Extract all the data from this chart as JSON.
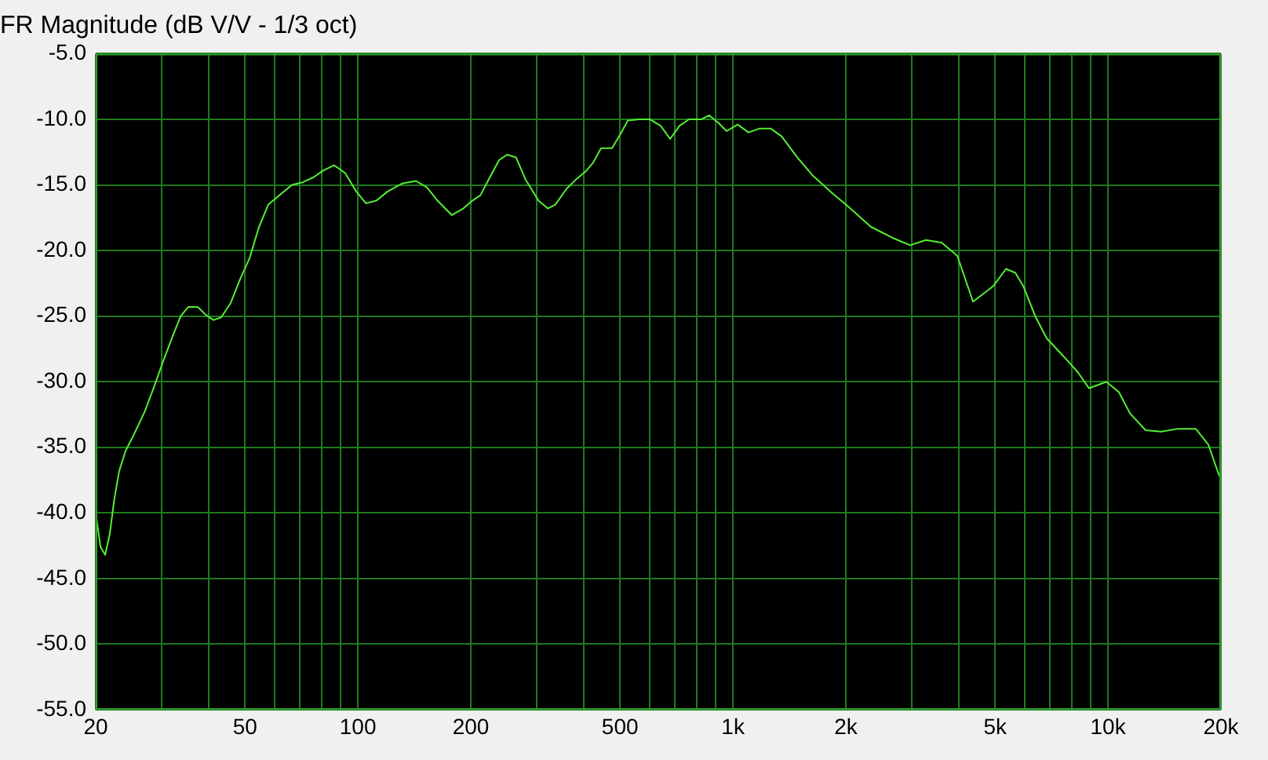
{
  "chart_data": {
    "type": "line",
    "title": "FR Magnitude (dB V/V - 1/3 oct)",
    "log": "x",
    "grid": true,
    "legend": false,
    "marker": "none",
    "line_style": "solid",
    "xlim": [
      20,
      20000
    ],
    "xticks": [
      20,
      {
        "value": 30,
        "label": null
      },
      {
        "value": 40,
        "label": null
      },
      50,
      {
        "value": 60,
        "label": null
      },
      {
        "value": 70,
        "label": null
      },
      {
        "value": 80,
        "label": null
      },
      {
        "value": 90,
        "label": null
      },
      100,
      200,
      {
        "value": 300,
        "label": null
      },
      {
        "value": 400,
        "label": null
      },
      500,
      {
        "value": 600,
        "label": null
      },
      {
        "value": 700,
        "label": null
      },
      {
        "value": 800,
        "label": null
      },
      {
        "value": 900,
        "label": null
      },
      {
        "value": 1000,
        "label": "1k"
      },
      {
        "value": 2000,
        "label": "2k"
      },
      {
        "value": 3000,
        "label": null
      },
      {
        "value": 4000,
        "label": null
      },
      {
        "value": 5000,
        "label": "5k"
      },
      {
        "value": 6000,
        "label": null
      },
      {
        "value": 7000,
        "label": null
      },
      {
        "value": 8000,
        "label": null
      },
      {
        "value": 9000,
        "label": null
      },
      {
        "value": 10000,
        "label": "10k"
      },
      {
        "value": 20000,
        "label": "20k"
      }
    ],
    "ylim": [
      -55,
      -5
    ],
    "yticks": [
      {
        "value": -55,
        "label": "-55.0"
      },
      {
        "value": -50,
        "label": "-50.0"
      },
      {
        "value": -45,
        "label": "-45.0"
      },
      {
        "value": -40,
        "label": "-40.0"
      },
      {
        "value": -35,
        "label": "-35.0"
      },
      {
        "value": -30,
        "label": "-30.0"
      },
      {
        "value": -25,
        "label": "-25.0"
      },
      {
        "value": -20,
        "label": "-20.0"
      },
      {
        "value": -15,
        "label": "-15.0"
      },
      {
        "value": -10,
        "label": "-10.0"
      },
      {
        "value": -5,
        "label": "-5.0"
      }
    ],
    "series": [
      {
        "color": "#55ee33",
        "x": [
          20,
          20.6,
          21.2,
          21.8,
          22.4,
          23.1,
          24.0,
          25.2,
          27.0,
          28.6,
          30.3,
          32.1,
          33.7,
          35.3,
          37.4,
          39.3,
          41.2,
          43.2,
          45.8,
          48.5,
          51.4,
          54.5,
          57.7,
          61.7,
          66.7,
          71.3,
          76.3,
          80.9,
          86.5,
          92.5,
          99,
          105,
          112,
          120,
          131,
          143,
          153,
          163,
          178,
          191,
          202,
          212,
          225,
          238,
          250,
          264,
          280,
          303,
          321,
          336,
          360,
          381,
          404,
          424,
          445,
          476,
          504,
          524,
          561,
          600,
          642,
          680,
          720,
          763,
          824,
          865,
          917,
          962,
          1029,
          1100,
          1178,
          1260,
          1348,
          1484,
          1634,
          1834,
          2020,
          2334,
          2696,
          2968,
          3270,
          3600,
          3964,
          4366,
          4948,
          5346,
          5662,
          5942,
          6418,
          6866,
          7632,
          8322,
          8902,
          9900,
          10692,
          11438,
          12598,
          13870,
          15270,
          17150,
          18518,
          19808
        ],
        "values": [
          -40.0,
          -42.6,
          -43.2,
          -41.6,
          -39.0,
          -36.8,
          -35.3,
          -34.1,
          -32.3,
          -30.4,
          -28.4,
          -26.5,
          -25.0,
          -24.3,
          -24.3,
          -24.9,
          -25.3,
          -25.1,
          -24.0,
          -22.2,
          -20.6,
          -18.2,
          -16.5,
          -15.8,
          -15.0,
          -14.8,
          -14.4,
          -13.9,
          -13.5,
          -14.1,
          -15.5,
          -16.4,
          -16.2,
          -15.5,
          -14.9,
          -14.7,
          -15.2,
          -16.2,
          -17.3,
          -16.8,
          -16.2,
          -15.8,
          -14.4,
          -13.1,
          -12.7,
          -12.9,
          -14.6,
          -16.2,
          -16.8,
          -16.5,
          -15.3,
          -14.6,
          -14.0,
          -13.3,
          -12.2,
          -12.2,
          -11.0,
          -10.1,
          -10.0,
          -10.0,
          -10.5,
          -11.5,
          -10.5,
          -10.0,
          -10.0,
          -9.7,
          -10.3,
          -10.9,
          -10.4,
          -11.0,
          -10.7,
          -10.7,
          -11.3,
          -12.9,
          -14.3,
          -15.6,
          -16.6,
          -18.2,
          -19.1,
          -19.6,
          -19.2,
          -19.4,
          -20.4,
          -23.9,
          -22.7,
          -21.4,
          -21.7,
          -22.7,
          -25.1,
          -26.7,
          -28.1,
          -29.3,
          -30.5,
          -30.0,
          -30.8,
          -32.4,
          -33.7,
          -33.8,
          -33.6,
          -33.6,
          -34.8,
          -37.2
        ]
      }
    ]
  }
}
